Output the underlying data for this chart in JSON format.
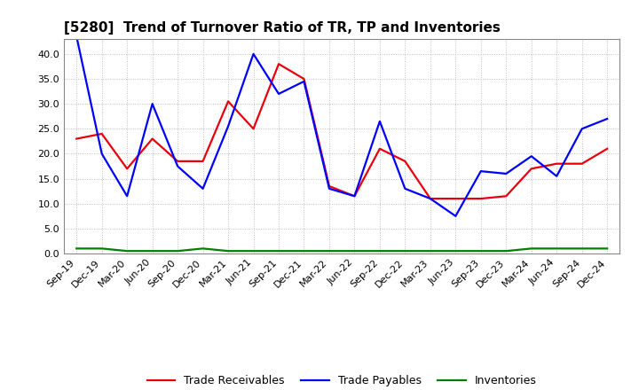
{
  "title": "[5280]  Trend of Turnover Ratio of TR, TP and Inventories",
  "x_labels": [
    "Sep-19",
    "Dec-19",
    "Mar-20",
    "Jun-20",
    "Sep-20",
    "Dec-20",
    "Mar-21",
    "Jun-21",
    "Sep-21",
    "Dec-21",
    "Mar-22",
    "Jun-22",
    "Sep-22",
    "Dec-22",
    "Mar-23",
    "Jun-23",
    "Sep-23",
    "Dec-23",
    "Mar-24",
    "Jun-24",
    "Sep-24",
    "Dec-24"
  ],
  "trade_receivables": [
    23.0,
    24.0,
    17.0,
    23.0,
    18.5,
    18.5,
    30.5,
    25.0,
    38.0,
    35.0,
    13.5,
    11.5,
    21.0,
    18.5,
    11.0,
    11.0,
    11.0,
    11.5,
    17.0,
    18.0,
    18.0,
    21.0
  ],
  "trade_payables": [
    43.5,
    20.0,
    11.5,
    30.0,
    17.5,
    13.0,
    25.5,
    40.0,
    32.0,
    34.5,
    13.0,
    11.5,
    26.5,
    13.0,
    11.0,
    7.5,
    16.5,
    16.0,
    19.5,
    15.5,
    25.0,
    27.0
  ],
  "inventories": [
    1.0,
    1.0,
    0.5,
    0.5,
    0.5,
    1.0,
    0.5,
    0.5,
    0.5,
    0.5,
    0.5,
    0.5,
    0.5,
    0.5,
    0.5,
    0.5,
    0.5,
    0.5,
    1.0,
    1.0,
    1.0,
    1.0
  ],
  "tr_color": "#e8000d",
  "tp_color": "#0000ff",
  "inv_color": "#008000",
  "ylim": [
    0.0,
    43.0
  ],
  "yticks": [
    0.0,
    5.0,
    10.0,
    15.0,
    20.0,
    25.0,
    30.0,
    35.0,
    40.0
  ],
  "legend_labels": [
    "Trade Receivables",
    "Trade Payables",
    "Inventories"
  ],
  "bg_color": "#ffffff",
  "plot_bg_color": "#ffffff",
  "grid_color": "#bbbbbb",
  "linewidth": 1.6,
  "title_fontsize": 11,
  "tick_fontsize": 8,
  "legend_fontsize": 9
}
